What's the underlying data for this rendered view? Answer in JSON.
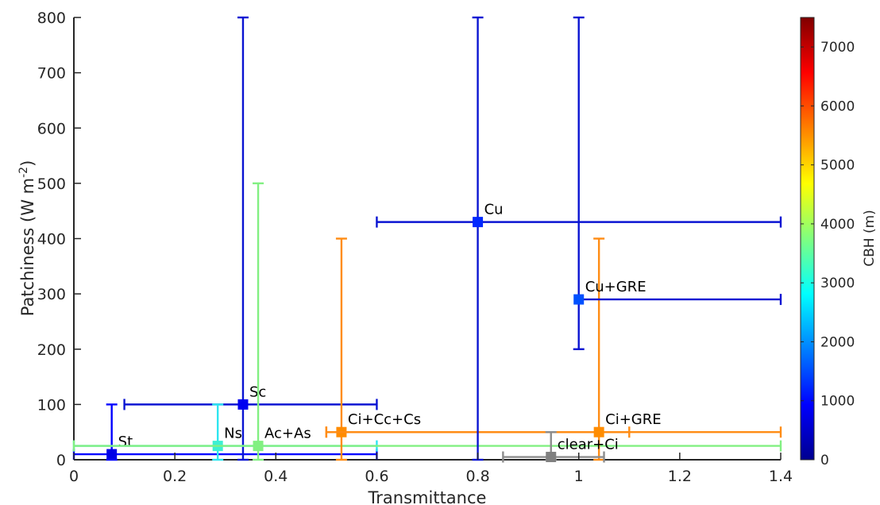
{
  "chart_data": {
    "type": "scatter",
    "title": "",
    "xlabel": "Transmittance",
    "ylabel_main": "Patchiness (W m",
    "ylabel_sup": "-2",
    "ylabel_end": ")",
    "xlim": [
      0,
      1.4
    ],
    "ylim": [
      0,
      800
    ],
    "xticks": [
      0,
      0.2,
      0.4,
      0.6,
      0.8,
      1,
      1.2,
      1.4
    ],
    "xtick_labels": [
      "0",
      "0.2",
      "0.4",
      "0.6",
      "0.8",
      "1",
      "1.2",
      "1.4"
    ],
    "yticks": [
      0,
      100,
      200,
      300,
      400,
      500,
      600,
      700,
      800
    ],
    "ytick_labels": [
      "0",
      "100",
      "200",
      "300",
      "400",
      "500",
      "600",
      "700",
      "800"
    ],
    "grid": false,
    "colorbar": {
      "label": "CBH (m)",
      "range": [
        0,
        7500
      ],
      "ticks": [
        0,
        1000,
        2000,
        3000,
        4000,
        5000,
        6000,
        7000
      ],
      "tick_labels": [
        "0",
        "1000",
        "2000",
        "3000",
        "4000",
        "5000",
        "6000",
        "7000"
      ],
      "colormap": "jet"
    },
    "points": [
      {
        "label": "St",
        "x": 0.075,
        "y": 10,
        "xerr": [
          0,
          0.6
        ],
        "yerr": [
          0,
          100
        ],
        "color": "#0000ff",
        "marker_color": "#0000e6"
      },
      {
        "label": "Sc",
        "x": 0.335,
        "y": 100,
        "xerr": [
          0.1,
          0.6
        ],
        "yerr": [
          0,
          800
        ],
        "color": "#0a14d2",
        "marker_color": "#0000f0"
      },
      {
        "label": "Ns",
        "x": 0.285,
        "y": 25,
        "xerr": [
          0,
          0.6
        ],
        "yerr": [
          0,
          100
        ],
        "color": "#2ee6f0",
        "marker_color": "#3cf0d2"
      },
      {
        "label": "Ac+As",
        "x": 0.365,
        "y": 25,
        "xerr": [
          0,
          1.4
        ],
        "yerr": [
          0,
          500
        ],
        "color": "#82f082",
        "marker_color": "#82f082"
      },
      {
        "label": "Ci+Cc+Cs",
        "x": 0.53,
        "y": 50,
        "xerr": [
          0.5,
          1.1
        ],
        "yerr": [
          0,
          400
        ],
        "color": "#ff8c14",
        "marker_color": "#ff8c00"
      },
      {
        "label": "Ci+GRE",
        "x": 1.04,
        "y": 50,
        "xerr": [
          0.5,
          1.4
        ],
        "yerr": [
          0,
          400
        ],
        "color": "#ff8c14",
        "marker_color": "#ff8c00"
      },
      {
        "label": "Cu",
        "x": 0.8,
        "y": 430,
        "xerr": [
          0.6,
          1.4
        ],
        "yerr": [
          0,
          800
        ],
        "color": "#0a14d2",
        "marker_color": "#0028ff"
      },
      {
        "label": "Cu+GRE",
        "x": 1.0,
        "y": 290,
        "xerr": [
          1.0,
          1.4
        ],
        "yerr": [
          200,
          800
        ],
        "color": "#0a14d2",
        "marker_color": "#0050ff"
      },
      {
        "label": "clear+Ci",
        "x": 0.945,
        "y": 5,
        "xerr": [
          0.85,
          1.05
        ],
        "yerr": [
          0,
          50
        ],
        "color": "#8c8c8c",
        "marker_color": "#808080"
      }
    ]
  }
}
